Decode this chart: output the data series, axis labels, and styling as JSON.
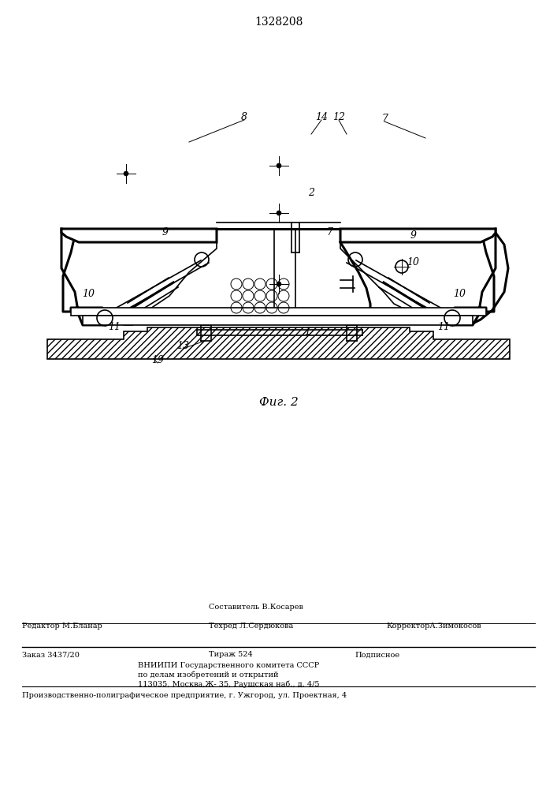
{
  "patent_number": "1328208",
  "fig_caption": "Фиг. 2",
  "bg_color": "#ffffff",
  "line_color": "#000000",
  "footer": {
    "line1_left": "Редактор М.Бланар",
    "line1_center": "Составитель В.Косарев",
    "line1_center2": "Техред Л.Сердюкова",
    "line1_right": "КорректорА.Зимокосов",
    "line2_left": "Заказ 3437/20",
    "line2_center": "Тираж 524",
    "line2_right": "Подписное",
    "line3": "ВНИИПИ Государственного комитета СССР",
    "line4": "по делам изобретений и открытий",
    "line5": "113035, Москва,Ж- 35, Раушская наб., д. 4/5",
    "line6": "Производственно-полиграфическое предприятие, г. Ужгород, ул. Проектная, 4"
  }
}
